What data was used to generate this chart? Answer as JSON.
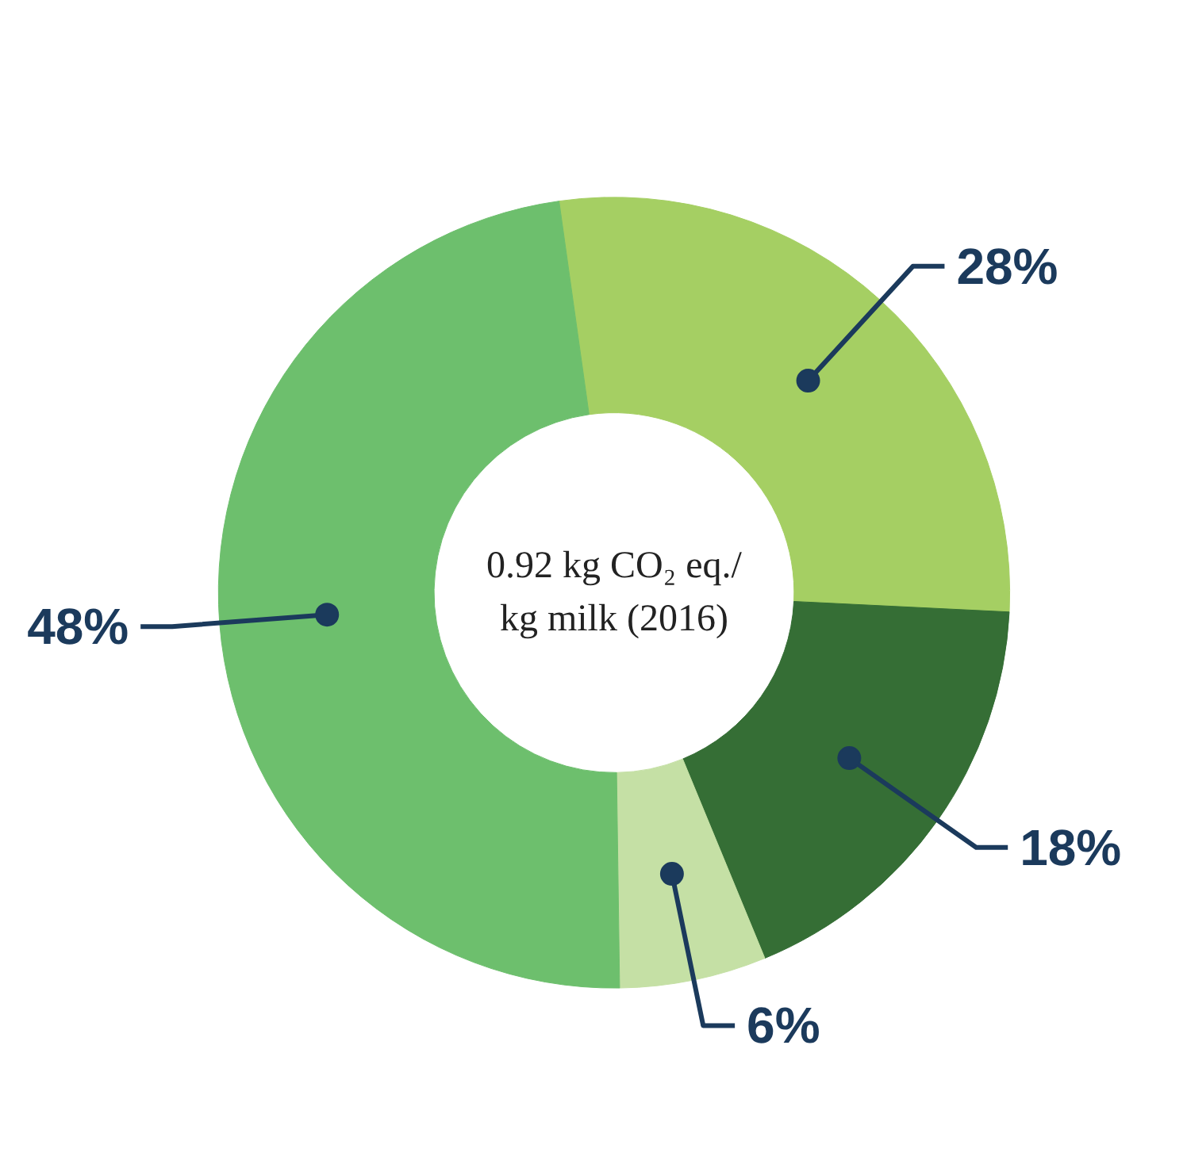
{
  "chart_data": {
    "type": "donut",
    "categories": [
      null,
      null,
      null,
      null
    ],
    "values": [
      28,
      18,
      6,
      48
    ],
    "colors": [
      "#a5cf63",
      "#356e35",
      "#c5e0a5",
      "#6dbf6d"
    ],
    "value_labels": [
      "28%",
      "18%",
      "6%",
      "48%"
    ],
    "annotations": [
      "0.92 kg CO₂ eq./\nkg milk (2016)"
    ]
  }
}
